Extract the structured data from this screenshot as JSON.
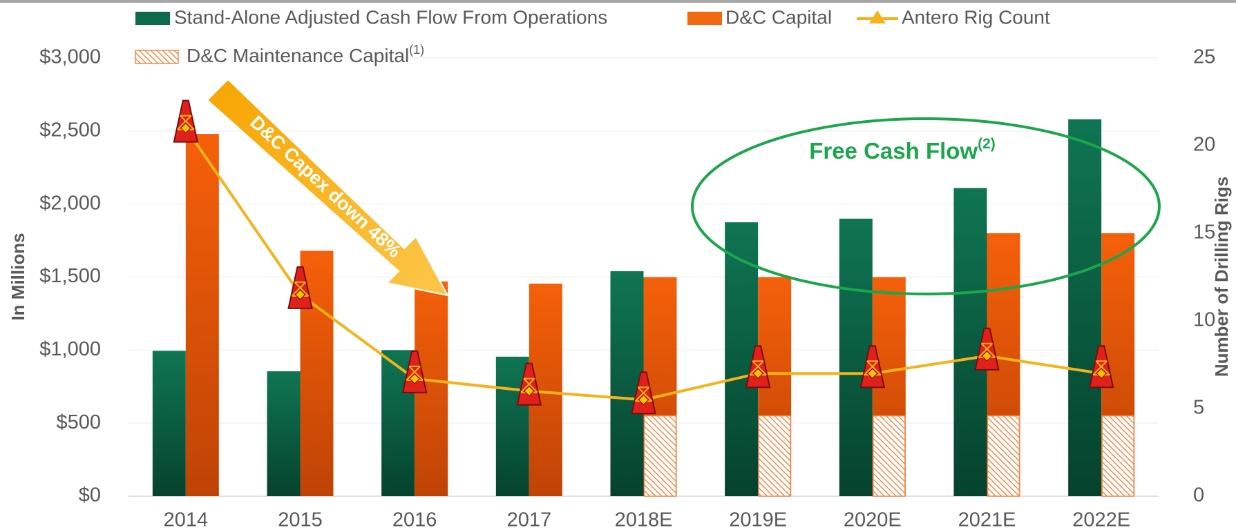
{
  "chart_data": {
    "type": "bar",
    "categories": [
      "2014",
      "2015",
      "2016",
      "2017",
      "2018E",
      "2019E",
      "2020E",
      "2021E",
      "2022E"
    ],
    "series": [
      {
        "name": "Stand-Alone Adjusted Cash Flow From Operations",
        "color": "#0b6b4b",
        "values": [
          995,
          855,
          1000,
          955,
          1540,
          1875,
          1900,
          2110,
          2580
        ]
      },
      {
        "name": "D&C Capital",
        "color": "#f26a10",
        "values": [
          2480,
          1680,
          1470,
          1455,
          1500,
          1500,
          1500,
          1800,
          1800
        ]
      },
      {
        "name": "Antero Rig Count",
        "color": "#f5b21a",
        "type": "line",
        "axis": "y2",
        "values": [
          21,
          11.5,
          6.7,
          6,
          5.5,
          7,
          7,
          8,
          7
        ]
      },
      {
        "name": "D&C Maintenance Capital",
        "name_superscript": "(1)",
        "color": "#f26a10",
        "pattern": "hatch",
        "values": [
          null,
          null,
          null,
          null,
          550,
          550,
          550,
          550,
          550
        ]
      }
    ],
    "ylabel": "In Millions",
    "y2label": "Number of Drilling Rigs",
    "ylim": [
      0,
      3000
    ],
    "yticks": [
      {
        "value": 0,
        "label": "$0"
      },
      {
        "value": 500,
        "label": "$500"
      },
      {
        "value": 1000,
        "label": "$1,000"
      },
      {
        "value": 1500,
        "label": "$1,500"
      },
      {
        "value": 2000,
        "label": "$2,000"
      },
      {
        "value": 2500,
        "label": "$2,500"
      },
      {
        "value": 3000,
        "label": "$3,000"
      }
    ],
    "y2lim": [
      0,
      25
    ],
    "y2ticks": [
      0,
      5,
      10,
      15,
      20,
      25
    ],
    "grid": true,
    "legend": "top",
    "annotations": [
      {
        "text": "D&C Capex down 48%"
      },
      {
        "text": "Free Cash Flow",
        "superscript": "(2)"
      }
    ]
  }
}
